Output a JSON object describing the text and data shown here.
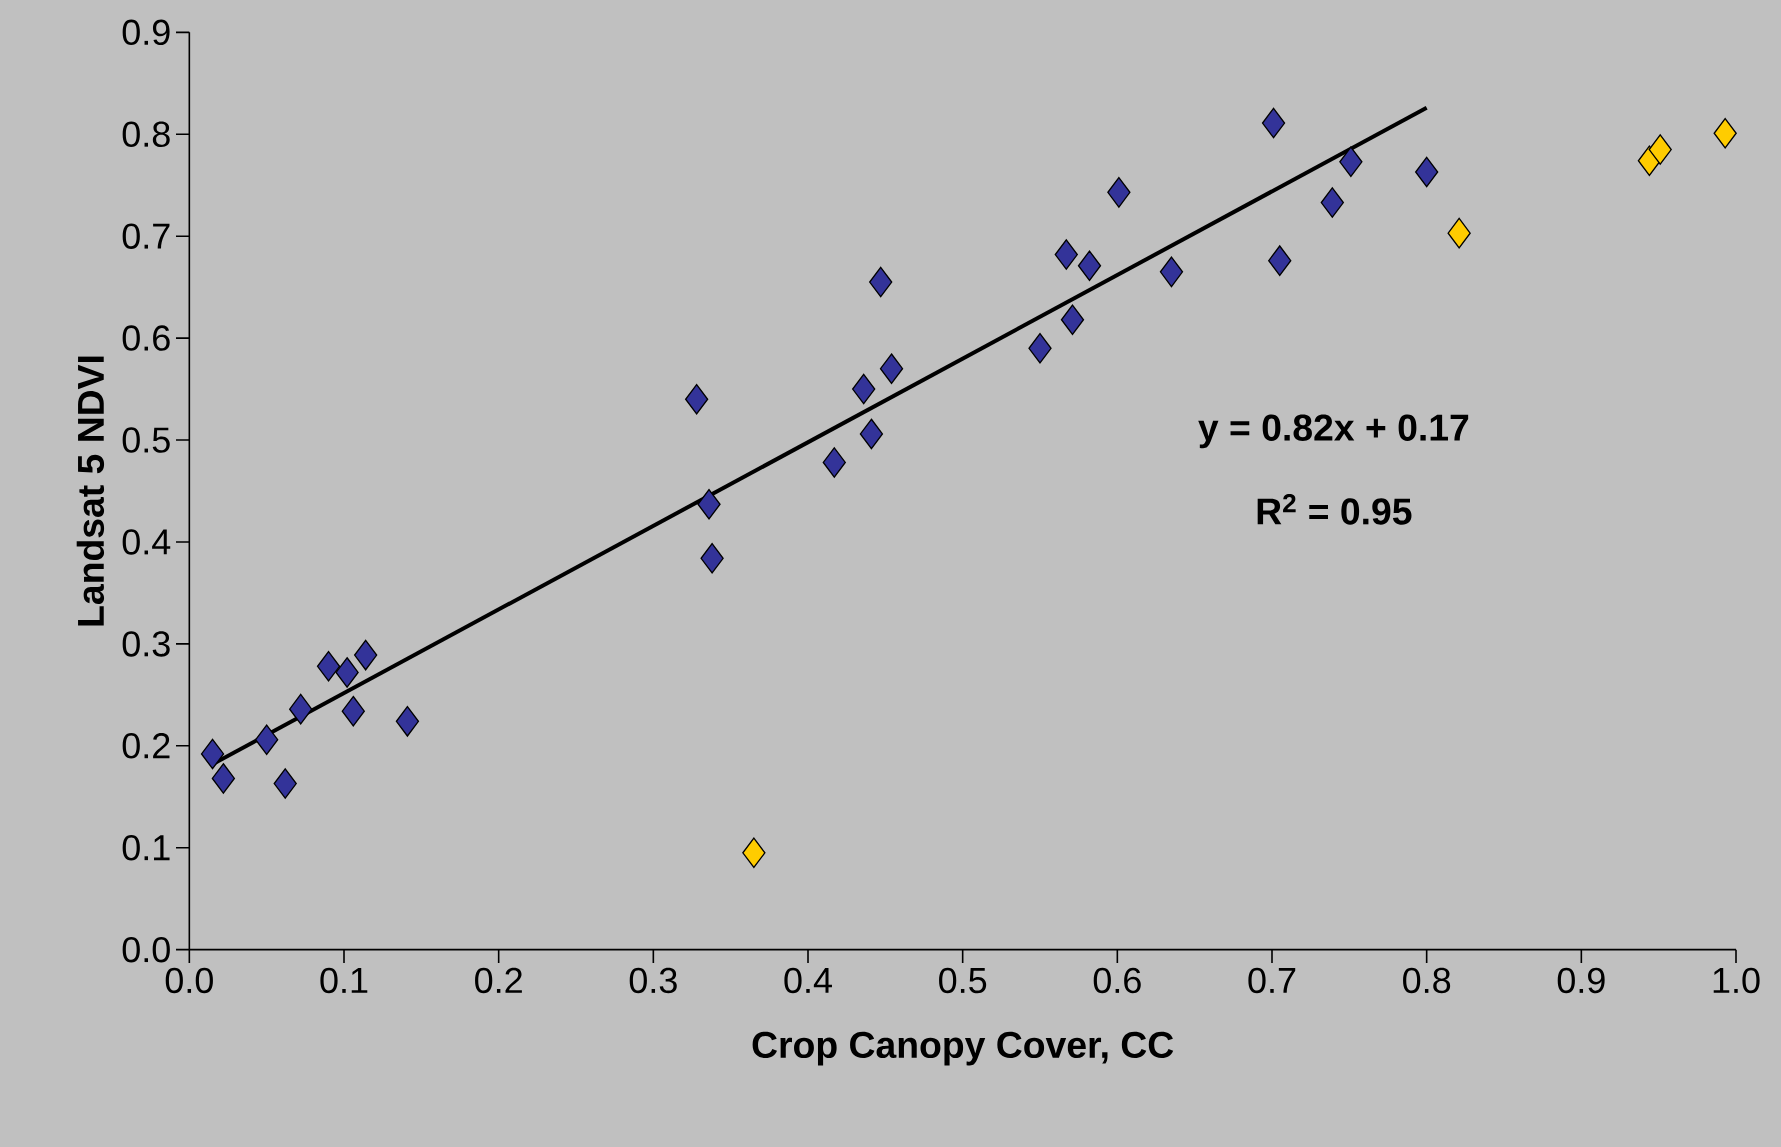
{
  "chart_data": {
    "type": "scatter",
    "xlabel": "Crop Canopy Cover, CC",
    "ylabel": "Landsat 5 NDVI",
    "marker": "diamond",
    "xlim": [
      0,
      1
    ],
    "ylim": [
      0,
      0.9
    ],
    "xticks": [
      {
        "value": 0,
        "label": "0.0"
      },
      0.1,
      0.2,
      0.3,
      0.4,
      0.5,
      0.6,
      0.7,
      0.8,
      0.9,
      {
        "value": 1,
        "label": "1.0"
      }
    ],
    "yticks": [
      {
        "value": 0,
        "label": "0.0"
      },
      0.1,
      0.2,
      0.3,
      0.4,
      0.5,
      0.6,
      0.7,
      0.8,
      0.9
    ],
    "annotations": [
      "y = 0.82x + 0.17",
      "R$^{2}$ = 0.95"
    ],
    "series": [
      {
        "color": "#333399",
        "x": [
          0.015,
          0.022,
          0.05,
          0.062,
          0.072,
          0.09,
          0.102,
          0.106,
          0.114,
          0.141,
          0.328,
          0.336,
          0.338,
          0.417,
          0.436,
          0.441,
          0.447,
          0.454,
          0.55,
          0.567,
          0.571,
          0.582,
          0.601,
          0.635,
          0.701,
          0.705,
          0.739,
          0.751,
          0.8
        ],
        "values": [
          0.192,
          0.168,
          0.206,
          0.163,
          0.236,
          0.278,
          0.272,
          0.234,
          0.289,
          0.224,
          0.54,
          0.437,
          0.384,
          0.478,
          0.55,
          0.506,
          0.655,
          0.57,
          0.59,
          0.682,
          0.618,
          0.671,
          0.743,
          0.665,
          0.811,
          0.676,
          0.733,
          0.773,
          0.763
        ]
      },
      {
        "color": "#ffcc00",
        "x": [
          0.365,
          0.821,
          0.944,
          0.951,
          0.993
        ],
        "values": [
          0.095,
          0.703,
          0.774,
          0.785,
          0.801
        ]
      },
      {
        "type": "line",
        "marker": "none",
        "color": "#000000",
        "x": [
          0.015,
          0.8
        ],
        "values": [
          0.182,
          0.826
        ]
      }
    ]
  }
}
